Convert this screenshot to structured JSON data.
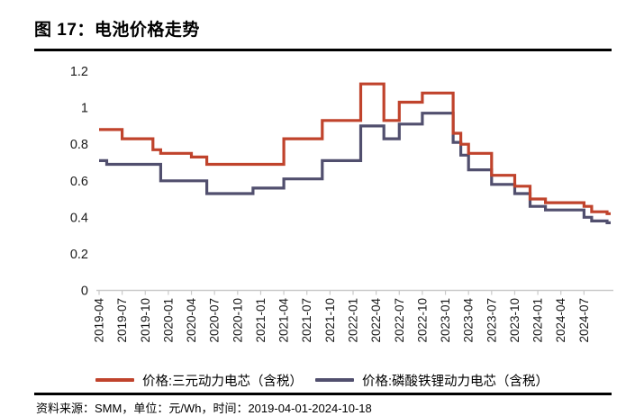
{
  "figure": {
    "title": "图 17：电池价格走势"
  },
  "source_note": "资料来源：SMM，单位：元/Wh，时间：2019-04-01-2024-10-18",
  "chart_data": {
    "type": "line",
    "step": true,
    "title": "电池价格走势",
    "xlabel": "",
    "ylabel": "",
    "ylim": [
      0,
      1.2
    ],
    "y_tick_labels": [
      "0",
      "0.2",
      "0.4",
      "0.6",
      "0.8",
      "1",
      "1.2"
    ],
    "y_ticks": [
      0,
      0.2,
      0.4,
      0.6,
      0.8,
      1,
      1.2
    ],
    "grid": false,
    "legend_position": "bottom",
    "axis_color": "#c9c9c9",
    "x_tick_labels": [
      "2019-04",
      "2019-07",
      "2019-10",
      "2020-01",
      "2020-04",
      "2020-07",
      "2020-10",
      "2021-01",
      "2021-04",
      "2021-07",
      "2021-10",
      "2022-01",
      "2022-04",
      "2022-07",
      "2022-10",
      "2023-01",
      "2023-04",
      "2023-07",
      "2023-10",
      "2024-01",
      "2024-04",
      "2024-07"
    ],
    "x": [
      "2019-04",
      "2019-05",
      "2019-06",
      "2019-07",
      "2019-08",
      "2019-09",
      "2019-10",
      "2019-11",
      "2019-12",
      "2020-01",
      "2020-02",
      "2020-03",
      "2020-04",
      "2020-05",
      "2020-06",
      "2020-07",
      "2020-08",
      "2020-09",
      "2020-10",
      "2020-11",
      "2020-12",
      "2021-01",
      "2021-02",
      "2021-03",
      "2021-04",
      "2021-05",
      "2021-06",
      "2021-07",
      "2021-08",
      "2021-09",
      "2021-10",
      "2021-11",
      "2021-12",
      "2022-01",
      "2022-02",
      "2022-03",
      "2022-04",
      "2022-05",
      "2022-06",
      "2022-07",
      "2022-08",
      "2022-09",
      "2022-10",
      "2022-11",
      "2022-12",
      "2023-01",
      "2023-02",
      "2023-03",
      "2023-04",
      "2023-05",
      "2023-06",
      "2023-07",
      "2023-08",
      "2023-09",
      "2023-10",
      "2023-11",
      "2023-12",
      "2024-01",
      "2024-02",
      "2024-03",
      "2024-04",
      "2024-05",
      "2024-06",
      "2024-07",
      "2024-08",
      "2024-09",
      "2024-10"
    ],
    "series": [
      {
        "name": "价格:三元动力电芯（含税）",
        "color": "#c0432c",
        "values": [
          0.88,
          0.88,
          0.88,
          0.83,
          0.83,
          0.83,
          0.83,
          0.77,
          0.75,
          0.75,
          0.75,
          0.75,
          0.73,
          0.73,
          0.69,
          0.69,
          0.69,
          0.69,
          0.69,
          0.69,
          0.69,
          0.69,
          0.69,
          0.69,
          0.83,
          0.83,
          0.83,
          0.83,
          0.83,
          0.93,
          0.93,
          0.93,
          0.93,
          0.93,
          1.13,
          1.13,
          1.13,
          0.93,
          0.93,
          1.03,
          1.03,
          1.03,
          1.08,
          1.08,
          1.08,
          1.08,
          0.86,
          0.8,
          0.75,
          0.75,
          0.75,
          0.63,
          0.63,
          0.63,
          0.57,
          0.57,
          0.5,
          0.5,
          0.48,
          0.48,
          0.48,
          0.48,
          0.48,
          0.46,
          0.43,
          0.43,
          0.42
        ]
      },
      {
        "name": "价格:磷酸铁锂动力电芯（含税）",
        "color": "#514f6e",
        "values": [
          0.71,
          0.69,
          0.69,
          0.69,
          0.69,
          0.69,
          0.69,
          0.69,
          0.6,
          0.6,
          0.6,
          0.6,
          0.6,
          0.6,
          0.53,
          0.53,
          0.53,
          0.53,
          0.53,
          0.53,
          0.56,
          0.56,
          0.56,
          0.56,
          0.61,
          0.61,
          0.61,
          0.61,
          0.61,
          0.71,
          0.71,
          0.71,
          0.71,
          0.71,
          0.9,
          0.9,
          0.9,
          0.83,
          0.83,
          0.91,
          0.91,
          0.91,
          0.97,
          0.97,
          0.97,
          0.97,
          0.81,
          0.74,
          0.66,
          0.66,
          0.66,
          0.58,
          0.58,
          0.58,
          0.53,
          0.53,
          0.46,
          0.46,
          0.44,
          0.44,
          0.44,
          0.44,
          0.44,
          0.4,
          0.38,
          0.38,
          0.37
        ]
      }
    ]
  }
}
